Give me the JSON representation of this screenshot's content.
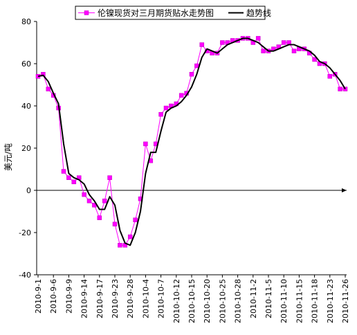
{
  "chart_data": {
    "type": "line",
    "ylabel": "美元/吨",
    "ylim": [
      -40,
      80
    ],
    "yticks": [
      -40,
      -20,
      0,
      20,
      40,
      60,
      80
    ],
    "grid": false,
    "legend_position": "top-center",
    "x_tick_labels": [
      "2010-9-1",
      "2010-9-6",
      "2010-9-9",
      "2010-9-14",
      "2010-9-17",
      "2010-9-23",
      "2010-9-28",
      "2010-10-4",
      "2010-10-7",
      "2010-10-12",
      "2010-10-15",
      "2010-10-20",
      "2010-10-25",
      "2010-10-28",
      "2010-11-2",
      "2010-11-5",
      "2010-11-10",
      "2010-11-15",
      "2010-11-18",
      "2010-11-23",
      "2010-11-26"
    ],
    "x_tick_index": [
      0,
      3,
      6,
      9,
      12,
      15,
      18,
      21,
      24,
      27,
      30,
      33,
      36,
      39,
      42,
      45,
      48,
      51,
      54,
      57,
      60
    ],
    "series": [
      {
        "name": "伦镍现货对三月期货贴水走势图",
        "color": "#ff00ff",
        "marker": "square",
        "values": [
          54,
          55,
          48,
          45,
          39,
          9,
          6,
          4,
          6,
          -2,
          -5,
          -7,
          -13,
          -5,
          6,
          -16,
          -26,
          -26,
          -22,
          -14,
          -4,
          22,
          14,
          22,
          36,
          39,
          40,
          41,
          45,
          46,
          55,
          59,
          69,
          66,
          65,
          65,
          70,
          70,
          71,
          71,
          72,
          72,
          70,
          72,
          66,
          66,
          67,
          68,
          70,
          70,
          66,
          67,
          67,
          65,
          62,
          60,
          60,
          54,
          55,
          48,
          48
        ]
      },
      {
        "name": "趋势线",
        "color": "#000000",
        "marker": "none",
        "values": [
          54,
          54.5,
          51.5,
          46,
          41,
          22,
          8,
          6,
          5,
          3,
          -2,
          -5,
          -9,
          -9,
          -3,
          -7,
          -19,
          -25,
          -26,
          -20,
          -10,
          8,
          18,
          18,
          28,
          37,
          39,
          40,
          42,
          45,
          49,
          55,
          63,
          67,
          66,
          65,
          67,
          69,
          70,
          71,
          72,
          72,
          71,
          70,
          68,
          66,
          66,
          67,
          68,
          69,
          69,
          68,
          67,
          66,
          64,
          61,
          60,
          58,
          55,
          52,
          48
        ]
      }
    ]
  }
}
